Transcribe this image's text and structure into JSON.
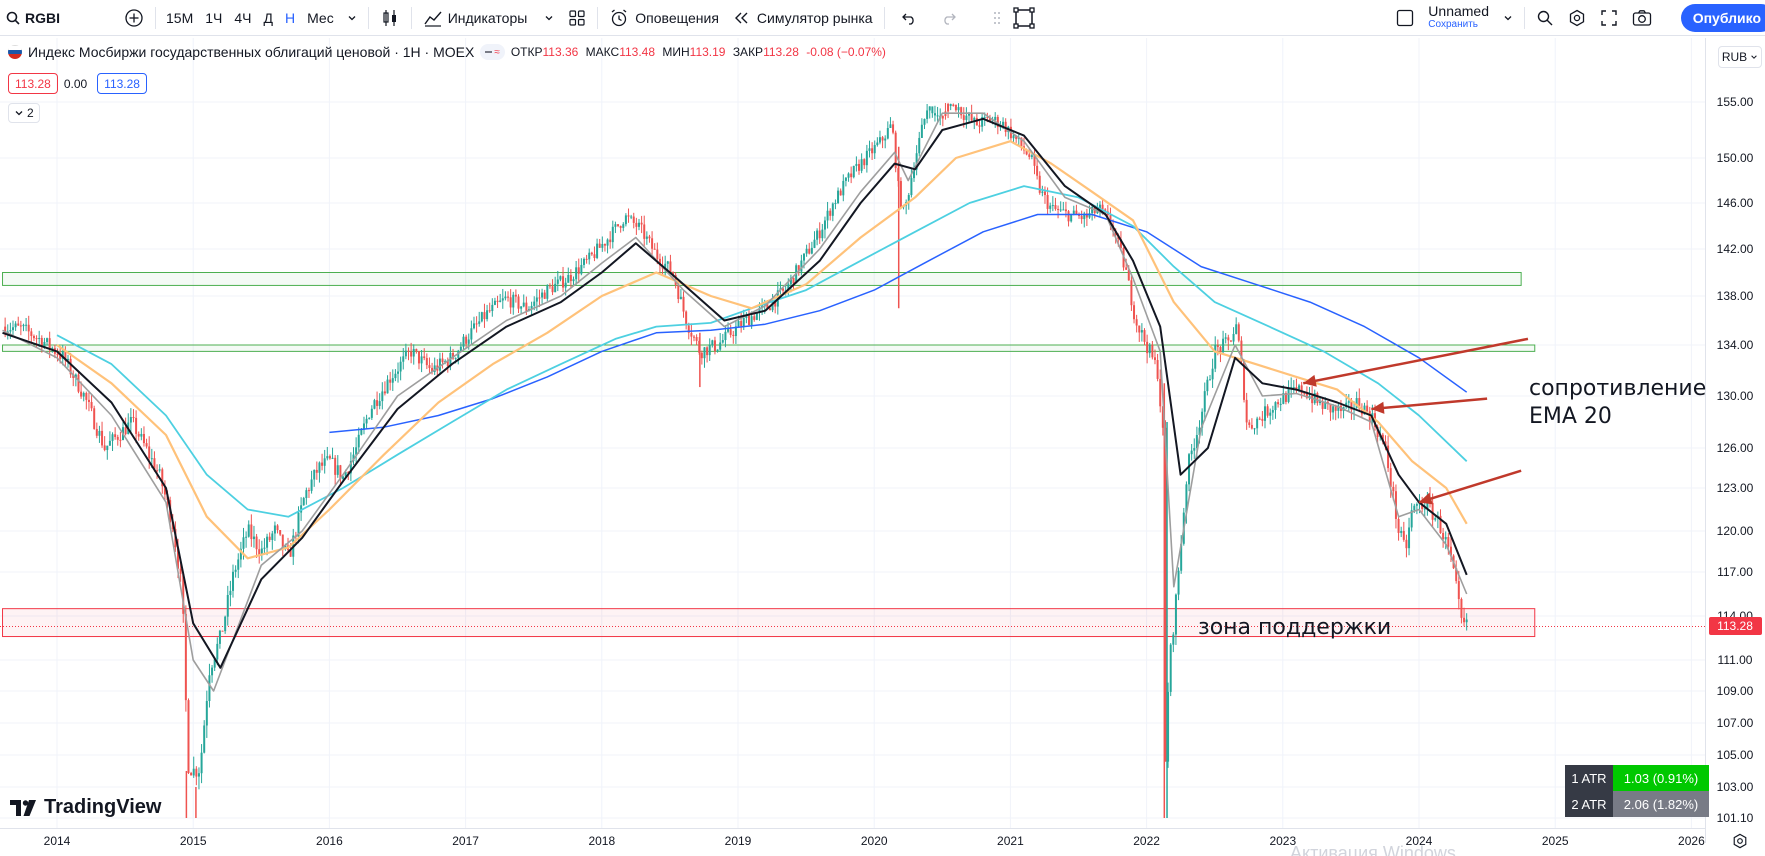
{
  "toolbar": {
    "symbol": "RGBI",
    "timeframes": [
      "15М",
      "1Ч",
      "4Ч",
      "Д",
      "Н",
      "Мес"
    ],
    "active_timeframe": "Н",
    "indicators_label": "Индикаторы",
    "alerts_label": "Оповещения",
    "replay_label": "Симулятор рынка",
    "layout_name": "Unnamed",
    "layout_sub": "Сохранить",
    "publish_label": "Опублико"
  },
  "legend": {
    "title": "Индекс Мосбиржи государственных облигаций ценовой · 1Н · MOEX",
    "open_label": "ОТКР",
    "open": "113.36",
    "high_label": "МАКС",
    "high": "113.48",
    "low_label": "МИН",
    "low": "113.19",
    "close_label": "ЗАКР",
    "close": "113.28",
    "change": "-0.08 (−0.07%)",
    "bid": "113.28",
    "spread": "0.00",
    "ask": "113.28",
    "collapsed_count": "2"
  },
  "currency": "RUB",
  "price_tag": "113.28",
  "logo_text": "TradingView",
  "atr_table": [
    {
      "label": "1 ATR",
      "value": "1.03 (0.91%)",
      "color": "#00c800"
    },
    {
      "label": "2 ATR",
      "value": "2.06 (1.82%)",
      "color": "#787b86"
    }
  ],
  "annotations": {
    "resistance_line1": "сопротивление",
    "resistance_line2": "EMA 20",
    "support": "зона поддержки"
  },
  "watermark": "Активация Windows",
  "colors": {
    "up": "#26a69a",
    "down": "#ef5350",
    "ema_black": "#131722",
    "ema_gray": "#9e9e9e",
    "ema_orange": "#ffc27a",
    "ema_cyan": "#4dd0e1",
    "ema_blue": "#2962ff",
    "resistance_zone": "#4caf50",
    "support_zone": "#f23645",
    "arrow": "#c0392b"
  },
  "chart_data": {
    "type": "candlestick",
    "title": "Индекс Мосбиржи государственных облигаций ценовой · 1Н · MOEX",
    "x_ticks": [
      "2014",
      "2015",
      "2016",
      "2017",
      "2018",
      "2019",
      "2020",
      "2021",
      "2022",
      "2023",
      "2024",
      "2025",
      "2026"
    ],
    "y_ticks": [
      "155.00",
      "150.00",
      "146.00",
      "142.00",
      "138.00",
      "134.00",
      "130.00",
      "126.00",
      "123.00",
      "120.00",
      "117.00",
      "114.00",
      "111.00",
      "109.00",
      "107.00",
      "105.00",
      "103.00",
      "101.10"
    ],
    "ylim": [
      101.1,
      157.5
    ],
    "xlim": [
      2013.6,
      2026.5
    ],
    "close_path": [
      [
        2013.6,
        135.5
      ],
      [
        2013.75,
        135.3
      ],
      [
        2013.9,
        134.3
      ],
      [
        2014.05,
        133.0
      ],
      [
        2014.2,
        130.0
      ],
      [
        2014.35,
        126.0
      ],
      [
        2014.45,
        127.0
      ],
      [
        2014.55,
        128.0
      ],
      [
        2014.65,
        126.0
      ],
      [
        2014.75,
        124.0
      ],
      [
        2014.85,
        120.5
      ],
      [
        2014.92,
        115.5
      ],
      [
        2014.96,
        104.5
      ],
      [
        2015.0,
        104.0
      ],
      [
        2015.05,
        104.2
      ],
      [
        2015.12,
        110.5
      ],
      [
        2015.2,
        112.5
      ],
      [
        2015.3,
        117.0
      ],
      [
        2015.4,
        120.0
      ],
      [
        2015.5,
        118.5
      ],
      [
        2015.6,
        120.0
      ],
      [
        2015.7,
        118.0
      ],
      [
        2015.82,
        122.5
      ],
      [
        2015.92,
        124.5
      ],
      [
        2016.0,
        125.0
      ],
      [
        2016.1,
        123.8
      ],
      [
        2016.2,
        126.0
      ],
      [
        2016.3,
        129.0
      ],
      [
        2016.45,
        131.5
      ],
      [
        2016.6,
        133.5
      ],
      [
        2016.75,
        132.0
      ],
      [
        2016.9,
        133.0
      ],
      [
        2017.0,
        134.5
      ],
      [
        2017.15,
        136.5
      ],
      [
        2017.3,
        137.8
      ],
      [
        2017.45,
        137.0
      ],
      [
        2017.6,
        138.5
      ],
      [
        2017.75,
        139.5
      ],
      [
        2017.9,
        141.0
      ],
      [
        2018.05,
        143.0
      ],
      [
        2018.17,
        144.8
      ],
      [
        2018.28,
        143.8
      ],
      [
        2018.4,
        141.5
      ],
      [
        2018.52,
        140.0
      ],
      [
        2018.62,
        136.0
      ],
      [
        2018.72,
        133.5
      ],
      [
        2018.85,
        134.0
      ],
      [
        2018.95,
        135.0
      ],
      [
        2019.05,
        136.0
      ],
      [
        2019.2,
        137.0
      ],
      [
        2019.35,
        138.5
      ],
      [
        2019.5,
        141.5
      ],
      [
        2019.6,
        143.5
      ],
      [
        2019.7,
        146.0
      ],
      [
        2019.8,
        148.0
      ],
      [
        2019.9,
        149.5
      ],
      [
        2020.05,
        151.5
      ],
      [
        2020.13,
        153.0
      ],
      [
        2020.18,
        147.0
      ],
      [
        2020.22,
        145.0
      ],
      [
        2020.3,
        150.0
      ],
      [
        2020.4,
        155.0
      ],
      [
        2020.46,
        156.5
      ],
      [
        2020.55,
        155.5
      ],
      [
        2020.65,
        154.0
      ],
      [
        2020.75,
        153.0
      ],
      [
        2020.85,
        153.5
      ],
      [
        2020.95,
        153.0
      ],
      [
        2021.05,
        151.5
      ],
      [
        2021.15,
        150.0
      ],
      [
        2021.22,
        147.0
      ],
      [
        2021.3,
        145.5
      ],
      [
        2021.42,
        145.0
      ],
      [
        2021.55,
        144.7
      ],
      [
        2021.65,
        145.5
      ],
      [
        2021.75,
        144.0
      ],
      [
        2021.85,
        140.0
      ],
      [
        2021.92,
        136.0
      ],
      [
        2022.0,
        134.0
      ],
      [
        2022.08,
        132.0
      ],
      [
        2022.12,
        127.0
      ],
      [
        2022.14,
        102.5
      ],
      [
        2022.16,
        110.0
      ],
      [
        2022.22,
        115.5
      ],
      [
        2022.3,
        124.5
      ],
      [
        2022.4,
        128.5
      ],
      [
        2022.5,
        133.5
      ],
      [
        2022.6,
        134.2
      ],
      [
        2022.66,
        135.5
      ],
      [
        2022.7,
        132.0
      ],
      [
        2022.74,
        127.5
      ],
      [
        2022.85,
        128.5
      ],
      [
        2022.95,
        129.5
      ],
      [
        2023.05,
        130.2
      ],
      [
        2023.15,
        130.5
      ],
      [
        2023.25,
        129.5
      ],
      [
        2023.35,
        129.0
      ],
      [
        2023.45,
        128.8
      ],
      [
        2023.55,
        129.5
      ],
      [
        2023.65,
        128.5
      ],
      [
        2023.75,
        126.0
      ],
      [
        2023.85,
        120.0
      ],
      [
        2023.9,
        118.5
      ],
      [
        2023.95,
        121.5
      ],
      [
        2024.05,
        122.0
      ],
      [
        2024.15,
        120.5
      ],
      [
        2024.22,
        118.5
      ],
      [
        2024.27,
        116.0
      ],
      [
        2024.31,
        113.5
      ],
      [
        2024.35,
        113.28
      ]
    ],
    "ema_black": [
      [
        2013.6,
        135.0
      ],
      [
        2014.0,
        133.5
      ],
      [
        2014.4,
        129.5
      ],
      [
        2014.8,
        123.0
      ],
      [
        2015.0,
        113.5
      ],
      [
        2015.2,
        110.5
      ],
      [
        2015.5,
        116.5
      ],
      [
        2015.8,
        119.5
      ],
      [
        2016.1,
        123.5
      ],
      [
        2016.5,
        129.0
      ],
      [
        2016.9,
        132.5
      ],
      [
        2017.3,
        135.5
      ],
      [
        2017.7,
        137.5
      ],
      [
        2018.0,
        140.0
      ],
      [
        2018.25,
        142.5
      ],
      [
        2018.55,
        139.5
      ],
      [
        2018.9,
        136.0
      ],
      [
        2019.2,
        136.8
      ],
      [
        2019.6,
        141.0
      ],
      [
        2019.9,
        146.0
      ],
      [
        2020.15,
        149.5
      ],
      [
        2020.3,
        149.0
      ],
      [
        2020.5,
        152.5
      ],
      [
        2020.8,
        153.5
      ],
      [
        2021.1,
        152.0
      ],
      [
        2021.4,
        147.5
      ],
      [
        2021.7,
        145.0
      ],
      [
        2021.9,
        141.0
      ],
      [
        2022.1,
        135.5
      ],
      [
        2022.25,
        124.0
      ],
      [
        2022.45,
        126.0
      ],
      [
        2022.65,
        133.0
      ],
      [
        2022.85,
        131.0
      ],
      [
        2023.1,
        130.5
      ],
      [
        2023.4,
        129.5
      ],
      [
        2023.65,
        128.5
      ],
      [
        2023.85,
        124.0
      ],
      [
        2024.0,
        122.0
      ],
      [
        2024.2,
        120.5
      ],
      [
        2024.35,
        116.8
      ]
    ],
    "ema_gray": [
      [
        2013.6,
        135.2
      ],
      [
        2014.0,
        133.0
      ],
      [
        2014.4,
        128.5
      ],
      [
        2014.8,
        122.0
      ],
      [
        2015.0,
        111.0
      ],
      [
        2015.15,
        109.0
      ],
      [
        2015.5,
        117.5
      ],
      [
        2015.8,
        120.0
      ],
      [
        2016.1,
        124.0
      ],
      [
        2016.5,
        130.0
      ],
      [
        2016.9,
        133.0
      ],
      [
        2017.3,
        136.0
      ],
      [
        2017.7,
        138.0
      ],
      [
        2018.0,
        140.8
      ],
      [
        2018.25,
        143.0
      ],
      [
        2018.6,
        138.5
      ],
      [
        2018.9,
        135.5
      ],
      [
        2019.2,
        137.2
      ],
      [
        2019.6,
        142.0
      ],
      [
        2019.9,
        147.0
      ],
      [
        2020.15,
        150.5
      ],
      [
        2020.25,
        148.0
      ],
      [
        2020.5,
        154.0
      ],
      [
        2020.8,
        154.0
      ],
      [
        2021.1,
        151.5
      ],
      [
        2021.4,
        146.5
      ],
      [
        2021.7,
        145.0
      ],
      [
        2021.9,
        139.5
      ],
      [
        2022.1,
        133.5
      ],
      [
        2022.2,
        116.0
      ],
      [
        2022.4,
        127.5
      ],
      [
        2022.65,
        134.0
      ],
      [
        2022.85,
        130.0
      ],
      [
        2023.1,
        130.2
      ],
      [
        2023.4,
        129.2
      ],
      [
        2023.65,
        128.0
      ],
      [
        2023.85,
        121.0
      ],
      [
        2024.0,
        121.5
      ],
      [
        2024.2,
        119.0
      ],
      [
        2024.35,
        115.5
      ]
    ],
    "ema_orange": [
      [
        2014.0,
        134.0
      ],
      [
        2014.4,
        131.0
      ],
      [
        2014.8,
        127.0
      ],
      [
        2015.1,
        121.0
      ],
      [
        2015.4,
        118.0
      ],
      [
        2015.7,
        118.8
      ],
      [
        2016.0,
        121.5
      ],
      [
        2016.4,
        125.5
      ],
      [
        2016.8,
        129.5
      ],
      [
        2017.2,
        132.5
      ],
      [
        2017.6,
        135.0
      ],
      [
        2018.0,
        138.0
      ],
      [
        2018.4,
        140.0
      ],
      [
        2018.8,
        138.0
      ],
      [
        2019.1,
        137.0
      ],
      [
        2019.5,
        139.0
      ],
      [
        2019.9,
        143.0
      ],
      [
        2020.3,
        146.5
      ],
      [
        2020.6,
        150.0
      ],
      [
        2021.0,
        151.5
      ],
      [
        2021.3,
        149.5
      ],
      [
        2021.6,
        147.0
      ],
      [
        2021.9,
        144.5
      ],
      [
        2022.2,
        137.5
      ],
      [
        2022.5,
        133.5
      ],
      [
        2022.8,
        132.5
      ],
      [
        2023.1,
        131.5
      ],
      [
        2023.4,
        130.5
      ],
      [
        2023.7,
        128.0
      ],
      [
        2023.95,
        125.0
      ],
      [
        2024.2,
        123.0
      ],
      [
        2024.35,
        120.5
      ]
    ],
    "ema_cyan": [
      [
        2014.0,
        134.8
      ],
      [
        2014.4,
        132.5
      ],
      [
        2014.8,
        128.5
      ],
      [
        2015.1,
        124.0
      ],
      [
        2015.4,
        121.5
      ],
      [
        2015.7,
        121.0
      ],
      [
        2016.1,
        123.0
      ],
      [
        2016.5,
        125.5
      ],
      [
        2016.9,
        128.0
      ],
      [
        2017.3,
        130.5
      ],
      [
        2017.7,
        132.5
      ],
      [
        2018.1,
        134.5
      ],
      [
        2018.4,
        135.5
      ],
      [
        2018.8,
        135.8
      ],
      [
        2019.1,
        137.0
      ],
      [
        2019.5,
        138.5
      ],
      [
        2019.9,
        141.0
      ],
      [
        2020.3,
        143.5
      ],
      [
        2020.7,
        146.0
      ],
      [
        2021.1,
        147.5
      ],
      [
        2021.5,
        146.5
      ],
      [
        2021.9,
        144.0
      ],
      [
        2022.2,
        140.5
      ],
      [
        2022.5,
        137.5
      ],
      [
        2022.9,
        135.5
      ],
      [
        2023.3,
        133.5
      ],
      [
        2023.7,
        131.0
      ],
      [
        2024.0,
        128.5
      ],
      [
        2024.35,
        125.0
      ]
    ],
    "ema_blue": [
      [
        2016.0,
        127.2
      ],
      [
        2016.4,
        127.6
      ],
      [
        2016.8,
        128.5
      ],
      [
        2017.2,
        129.8
      ],
      [
        2017.6,
        131.5
      ],
      [
        2018.0,
        133.5
      ],
      [
        2018.4,
        135.0
      ],
      [
        2018.8,
        135.2
      ],
      [
        2019.2,
        135.7
      ],
      [
        2019.6,
        136.8
      ],
      [
        2020.0,
        138.5
      ],
      [
        2020.4,
        141.0
      ],
      [
        2020.8,
        143.5
      ],
      [
        2021.2,
        145.0
      ],
      [
        2021.6,
        145.0
      ],
      [
        2022.0,
        143.5
      ],
      [
        2022.4,
        140.5
      ],
      [
        2022.8,
        139.0
      ],
      [
        2023.2,
        137.5
      ],
      [
        2023.6,
        135.5
      ],
      [
        2024.0,
        133.0
      ],
      [
        2024.35,
        130.3
      ]
    ],
    "zones": [
      {
        "kind": "resistance",
        "y1": 138.9,
        "y2": 140.0,
        "x1": 2013.6,
        "x2": 2024.75
      },
      {
        "kind": "resistance",
        "y1": 133.5,
        "y2": 134.0,
        "x1": 2013.6,
        "x2": 2024.85
      },
      {
        "kind": "support",
        "y1": 112.6,
        "y2": 114.5,
        "x1": 2013.6,
        "x2": 2024.85
      }
    ],
    "arrows": [
      {
        "from": [
          2024.8,
          134.5
        ],
        "to": [
          2023.15,
          131.0
        ]
      },
      {
        "from": [
          2024.5,
          129.8
        ],
        "to": [
          2023.65,
          129.0
        ]
      },
      {
        "from": [
          2024.75,
          124.3
        ],
        "to": [
          2024.0,
          122.0
        ]
      }
    ]
  }
}
